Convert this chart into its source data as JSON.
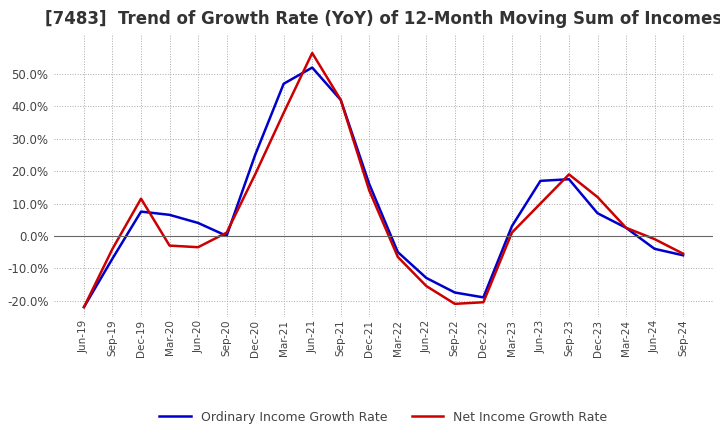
{
  "title": "[7483]  Trend of Growth Rate (YoY) of 12-Month Moving Sum of Incomes",
  "title_fontsize": 12,
  "background_color": "#ffffff",
  "plot_bg_color": "#ffffff",
  "grid_color": "#aaaaaa",
  "ylim": [
    -0.25,
    0.62
  ],
  "yticks": [
    -0.2,
    -0.1,
    0.0,
    0.1,
    0.2,
    0.3,
    0.4,
    0.5
  ],
  "x_labels": [
    "Jun-19",
    "Sep-19",
    "Dec-19",
    "Mar-20",
    "Jun-20",
    "Sep-20",
    "Dec-20",
    "Mar-21",
    "Jun-21",
    "Sep-21",
    "Dec-21",
    "Mar-22",
    "Jun-22",
    "Sep-22",
    "Dec-22",
    "Mar-23",
    "Jun-23",
    "Sep-23",
    "Dec-23",
    "Mar-24",
    "Jun-24",
    "Sep-24"
  ],
  "ordinary_income": [
    -0.22,
    -0.07,
    0.075,
    0.065,
    0.04,
    0.0,
    0.25,
    0.47,
    0.52,
    0.42,
    0.16,
    -0.05,
    -0.13,
    -0.175,
    -0.19,
    0.03,
    0.17,
    0.175,
    0.07,
    0.025,
    -0.04,
    -0.06
  ],
  "net_income": [
    -0.22,
    -0.04,
    0.115,
    -0.03,
    -0.035,
    0.01,
    0.19,
    0.38,
    0.565,
    0.42,
    0.14,
    -0.065,
    -0.155,
    -0.21,
    -0.205,
    0.01,
    0.1,
    0.19,
    0.12,
    0.025,
    -0.01,
    -0.055
  ],
  "ordinary_color": "#0000cc",
  "net_color": "#cc0000",
  "line_width": 1.8,
  "legend_ordinary": "Ordinary Income Growth Rate",
  "legend_net": "Net Income Growth Rate"
}
